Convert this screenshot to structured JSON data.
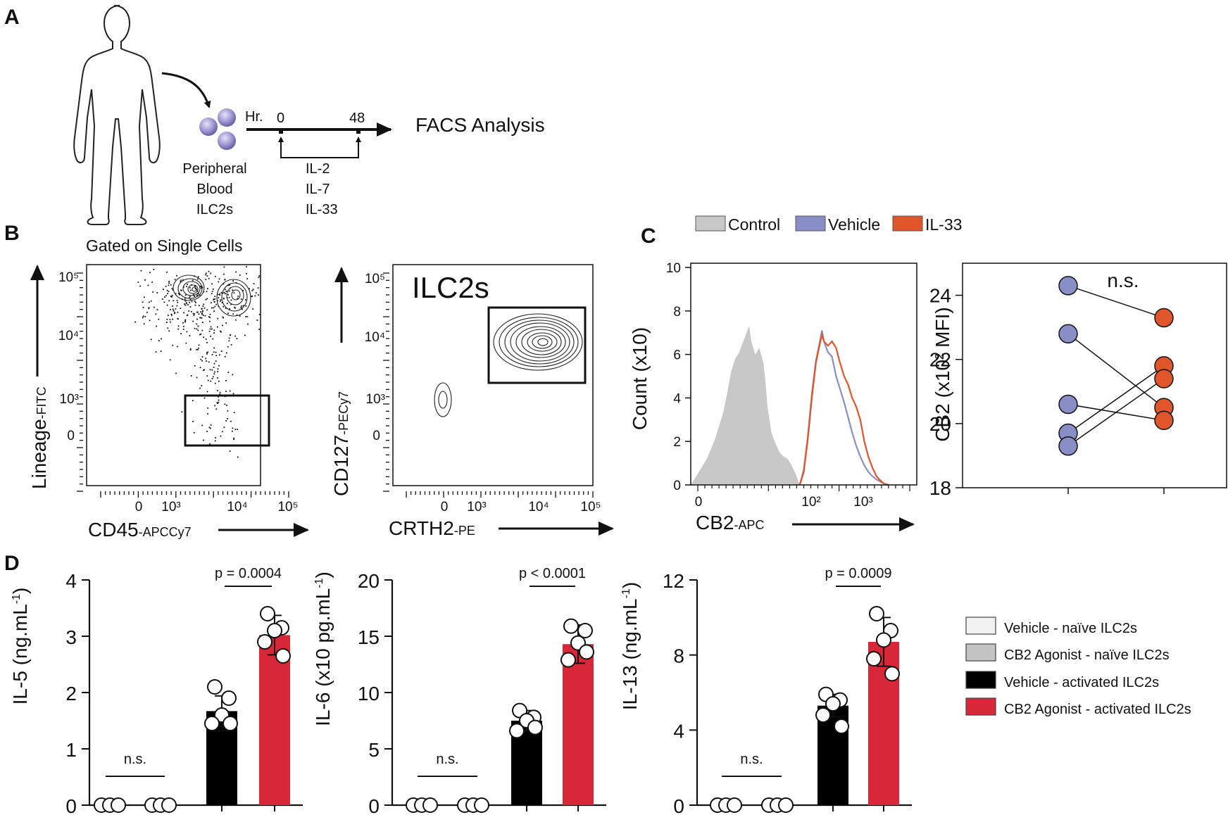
{
  "panels": {
    "A": {
      "letter": "A",
      "cells_label": [
        "Peripheral",
        "Blood",
        "ILC2s"
      ],
      "timeline_unit": "Hr.",
      "timeline_start": "0",
      "timeline_end": "48",
      "cytokines": [
        "IL-2",
        "IL-7",
        "IL-33"
      ],
      "readout": "FACS Analysis"
    },
    "B": {
      "letter": "B",
      "gate_title": "Gated on Single Cells",
      "gate_label": "ILC2s",
      "left_plot": {
        "x_label": "CD45",
        "x_sub": "-APCCy7",
        "y_label": "Lineage",
        "y_sub": "-FITC",
        "x_ticks": [
          "0",
          "10³",
          "10⁴",
          "10⁵"
        ],
        "y_ticks": [
          "10⁵",
          "10⁴",
          "10³",
          "0"
        ]
      },
      "right_plot": {
        "x_label": "CRTH2",
        "x_sub": "-PE",
        "y_label": "CD127",
        "y_sub": "-PECy7",
        "x_ticks": [
          "0",
          "10³",
          "10⁴",
          "10⁵"
        ],
        "y_ticks": [
          "10⁵",
          "10⁴",
          "10³",
          "0"
        ]
      }
    },
    "C": {
      "letter": "C",
      "sig_label": "n.s."
    },
    "D": {
      "letter": "D"
    }
  },
  "colors": {
    "control": "#c8c8c8",
    "vehicle": "#8a8ec6",
    "il33": "#e0552a",
    "naive_vehicle": "#f2f2f2",
    "naive_agonist": "#c4c4c4",
    "activated_vehicle": "#000000",
    "activated_agonist": "#d9273a"
  },
  "chart_data": [
    {
      "id": "C-histogram",
      "type": "area",
      "x_label": "CB2",
      "x_sub": "-APC",
      "y_label": "Count (x10)",
      "x_ticks": [
        "0",
        "10²",
        "10³"
      ],
      "ylim": [
        0,
        10
      ],
      "y_ticks": [
        0,
        2,
        4,
        6,
        8,
        10
      ],
      "legend": [
        "Control",
        "Vehicle",
        "IL-33"
      ],
      "series": [
        {
          "name": "Control",
          "x": [
            0.0,
            0.2,
            0.4,
            0.6,
            0.8,
            0.9,
            1.0,
            1.1,
            1.2,
            1.3,
            1.4,
            1.45,
            1.5,
            1.6,
            1.7,
            1.8,
            1.85,
            1.9,
            2.0,
            2.1,
            2.2,
            2.3,
            2.4,
            2.5,
            2.6,
            2.7
          ],
          "y": [
            0,
            0.6,
            1.2,
            2.1,
            3.3,
            4.2,
            5.2,
            5.8,
            6.1,
            6.6,
            7.1,
            7.3,
            6.6,
            6.0,
            6.3,
            5.6,
            4.8,
            3.6,
            2.4,
            1.9,
            1.5,
            1.3,
            1.2,
            0.9,
            0.5,
            0
          ]
        },
        {
          "name": "Vehicle",
          "x": [
            2.7,
            2.8,
            2.9,
            3.0,
            3.1,
            3.2,
            3.25,
            3.3,
            3.4,
            3.5,
            3.6,
            3.7,
            3.8,
            3.9,
            4.0,
            4.1,
            4.2,
            4.3,
            4.4,
            4.5,
            4.6,
            4.7,
            4.8,
            4.9
          ],
          "y": [
            0,
            0.7,
            2.2,
            4.2,
            5.7,
            6.6,
            7.1,
            6.6,
            6.1,
            5.9,
            5.0,
            4.4,
            3.8,
            3.1,
            2.4,
            1.8,
            1.3,
            0.9,
            0.6,
            0.4,
            0.25,
            0.15,
            0.05,
            0
          ]
        },
        {
          "name": "IL-33",
          "x": [
            2.7,
            2.8,
            2.9,
            3.0,
            3.1,
            3.2,
            3.25,
            3.3,
            3.4,
            3.5,
            3.6,
            3.7,
            3.8,
            3.9,
            4.0,
            4.1,
            4.2,
            4.3,
            4.4,
            4.5,
            4.6,
            4.7,
            4.8,
            4.9
          ],
          "y": [
            0,
            0.6,
            2.1,
            4.0,
            5.6,
            6.5,
            6.9,
            6.6,
            6.4,
            6.6,
            6.3,
            5.6,
            5.0,
            4.6,
            4.0,
            3.6,
            3.0,
            2.0,
            1.3,
            0.8,
            0.4,
            0.2,
            0.05,
            0
          ]
        }
      ]
    },
    {
      "id": "C-paired",
      "type": "scatter",
      "y_label": "CB2 (x10² MFI)",
      "ylim": [
        18,
        25
      ],
      "y_ticks": [
        18,
        20,
        22,
        24
      ],
      "annotation": "n.s.",
      "pairs": [
        [
          24.3,
          23.3
        ],
        [
          22.8,
          20.5
        ],
        [
          20.6,
          20.1
        ],
        [
          19.7,
          21.8
        ],
        [
          19.3,
          21.4
        ]
      ]
    },
    {
      "id": "D-IL5",
      "type": "bar",
      "ylabel": "IL-5 (ng.mL",
      "ylabel_sup": "-1",
      "ylabel_end": ")",
      "ylim": [
        0,
        4
      ],
      "y_ticks": [
        0,
        1,
        2,
        3,
        4
      ],
      "categories": [
        "Vehicle - naïve ILC2s",
        "CB2 Agonist - naïve ILC2s",
        "Vehicle - activated ILC2s",
        "CB2 Agonist - activated ILC2s"
      ],
      "values": [
        0,
        0,
        1.67,
        3.02
      ],
      "errors": [
        0,
        0,
        0.27,
        0.35
      ],
      "points": [
        [
          0,
          0,
          0
        ],
        [
          0,
          0,
          0
        ],
        [
          2.1,
          1.9,
          1.6,
          1.45,
          1.45
        ],
        [
          3.4,
          3.15,
          3.1,
          2.9,
          2.65
        ]
      ],
      "sig_naive": "n.s.",
      "sig_activated": "p = 0.0004"
    },
    {
      "id": "D-IL6",
      "type": "bar",
      "ylabel": "IL-6 (x10 pg.mL",
      "ylabel_sup": "-1",
      "ylabel_end": ")",
      "ylim": [
        0,
        20
      ],
      "y_ticks": [
        0,
        5,
        10,
        15,
        20
      ],
      "categories": [
        "Vehicle - naïve ILC2s",
        "CB2 Agonist - naïve ILC2s",
        "Vehicle - activated ILC2s",
        "CB2 Agonist - activated ILC2s"
      ],
      "values": [
        0,
        0,
        7.5,
        14.3
      ],
      "errors": [
        0,
        0,
        0.9,
        1.7
      ],
      "points": [
        [
          0,
          0,
          0
        ],
        [
          0,
          0,
          0
        ],
        [
          8.4,
          7.8,
          7.5,
          6.6,
          6.9
        ],
        [
          15.9,
          15.5,
          14.4,
          12.9,
          13.6
        ]
      ],
      "sig_naive": "n.s.",
      "sig_activated": "p < 0.0001"
    },
    {
      "id": "D-IL13",
      "type": "bar",
      "ylabel": "IL-13 (ng.mL",
      "ylabel_sup": "-1",
      "ylabel_end": ")",
      "ylim": [
        0,
        12
      ],
      "y_ticks": [
        0,
        4,
        8,
        12
      ],
      "categories": [
        "Vehicle - naïve ILC2s",
        "CB2 Agonist - naïve ILC2s",
        "Vehicle - activated ILC2s",
        "CB2 Agonist - activated ILC2s"
      ],
      "values": [
        0,
        0,
        5.3,
        8.7
      ],
      "errors": [
        0,
        0,
        0.6,
        1.3
      ],
      "points": [
        [
          0,
          0,
          0
        ],
        [
          0,
          0,
          0
        ],
        [
          5.9,
          5.6,
          5.4,
          4.8,
          4.2
        ],
        [
          10.2,
          9.3,
          8.8,
          7.8,
          7.0
        ]
      ],
      "sig_naive": "n.s.",
      "sig_activated": "p = 0.0009"
    }
  ],
  "legend_D": [
    "Vehicle - naïve ILC2s",
    "CB2 Agonist - naïve ILC2s",
    "Vehicle - activated ILC2s",
    "CB2 Agonist - activated ILC2s"
  ]
}
